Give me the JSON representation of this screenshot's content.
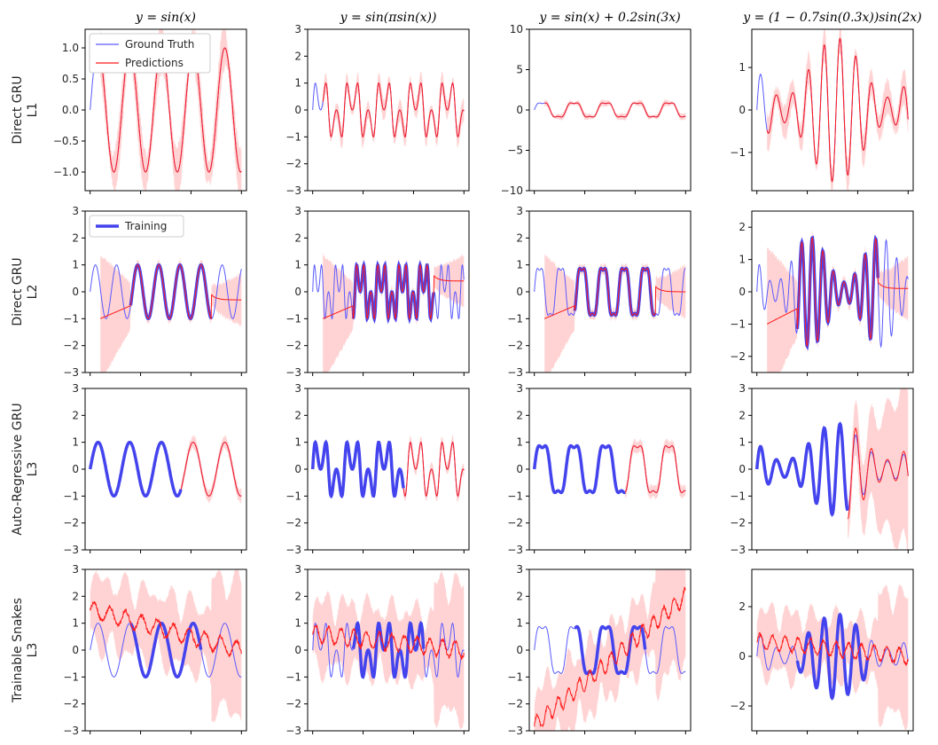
{
  "figure": {
    "col_titles": [
      "y = sin(x)",
      "y = sin(πsin(x))",
      "y = sin(x) + 0.2sin(3x)",
      "y = (1 − 0.7sin(0.3x))sin(2x)"
    ],
    "row_labels": [
      [
        "Direct GRU",
        "L1"
      ],
      [
        "Direct GRU",
        "L2"
      ],
      [
        "Auto-Regressive GRU",
        "L3"
      ],
      [
        "Trainable Snakes",
        "L3"
      ]
    ],
    "legend_row0": [
      "Ground Truth",
      "Predictions"
    ],
    "legend_row1": [
      "Training"
    ],
    "colors": {
      "ground_truth": "#5a5aff",
      "training": "#4444ee",
      "predictions": "#ff1a1a",
      "band": "#ffc8c8"
    }
  },
  "chart_data": [
    {
      "type": "line",
      "row": 0,
      "col": 0,
      "ylim": [
        -1.3,
        1.3
      ],
      "yticks": [
        "1.0",
        "0.5",
        "0.0",
        "−0.5",
        "−1.0"
      ],
      "ytick_values": [
        1.0,
        0.5,
        0.0,
        -0.5,
        -1.0
      ],
      "series": [
        {
          "name": "Ground Truth",
          "values": "sin(x), x∈[0,30]"
        },
        {
          "name": "Predictions",
          "values": "sin(x), x∈[2,30]"
        }
      ]
    },
    {
      "type": "line",
      "row": 0,
      "col": 1,
      "ylim": [
        -3,
        3
      ],
      "yticks": [
        "3",
        "2",
        "1",
        "0",
        "−1",
        "−2",
        "−3"
      ],
      "ytick_values": [
        3,
        2,
        1,
        0,
        -1,
        -2,
        -3
      ]
    },
    {
      "type": "line",
      "row": 0,
      "col": 2,
      "ylim": [
        -10,
        10
      ],
      "yticks": [
        "10",
        "5",
        "0",
        "−5",
        "−10"
      ],
      "ytick_values": [
        10,
        5,
        0,
        -5,
        -10
      ]
    },
    {
      "type": "line",
      "row": 0,
      "col": 3,
      "ylim": [
        -1.9,
        1.9
      ],
      "yticks": [
        "1",
        "0",
        "−1"
      ],
      "ytick_values": [
        1,
        0,
        -1
      ]
    },
    {
      "type": "line",
      "row": 1,
      "col": 0,
      "ylim": [
        -3,
        3
      ],
      "yticks": [
        "3",
        "2",
        "1",
        "0",
        "−1",
        "−2",
        "−3"
      ],
      "ytick_values": [
        3,
        2,
        1,
        0,
        -1,
        -2,
        -3
      ]
    },
    {
      "type": "line",
      "row": 1,
      "col": 1,
      "ylim": [
        -3,
        3
      ],
      "yticks": [
        "3",
        "2",
        "1",
        "0",
        "−1",
        "−2",
        "−3"
      ],
      "ytick_values": [
        3,
        2,
        1,
        0,
        -1,
        -2,
        -3
      ]
    },
    {
      "type": "line",
      "row": 1,
      "col": 2,
      "ylim": [
        -3,
        3
      ],
      "yticks": [
        "3",
        "2",
        "1",
        "0",
        "−1",
        "−2",
        "−3"
      ],
      "ytick_values": [
        3,
        2,
        1,
        0,
        -1,
        -2,
        -3
      ]
    },
    {
      "type": "line",
      "row": 1,
      "col": 3,
      "ylim": [
        -2.5,
        2.5
      ],
      "yticks": [
        "2",
        "1",
        "0",
        "−1",
        "−2"
      ],
      "ytick_values": [
        2,
        1,
        0,
        -1,
        -2
      ]
    },
    {
      "type": "line",
      "row": 2,
      "col": 0,
      "ylim": [
        -3,
        3
      ],
      "yticks": [
        "3",
        "2",
        "1",
        "0",
        "−1",
        "−2",
        "−3"
      ],
      "ytick_values": [
        3,
        2,
        1,
        0,
        -1,
        -2,
        -3
      ]
    },
    {
      "type": "line",
      "row": 2,
      "col": 1,
      "ylim": [
        -3,
        3
      ],
      "yticks": [
        "3",
        "2",
        "1",
        "0",
        "−1",
        "−2",
        "−3"
      ],
      "ytick_values": [
        3,
        2,
        1,
        0,
        -1,
        -2,
        -3
      ]
    },
    {
      "type": "line",
      "row": 2,
      "col": 2,
      "ylim": [
        -3,
        3
      ],
      "yticks": [
        "3",
        "2",
        "1",
        "0",
        "−1",
        "−2",
        "−3"
      ],
      "ytick_values": [
        3,
        2,
        1,
        0,
        -1,
        -2,
        -3
      ]
    },
    {
      "type": "line",
      "row": 2,
      "col": 3,
      "ylim": [
        -3,
        3
      ],
      "yticks": [
        "3",
        "2",
        "1",
        "0",
        "−1",
        "−2",
        "−3"
      ],
      "ytick_values": [
        3,
        2,
        1,
        0,
        -1,
        -2,
        -3
      ]
    },
    {
      "type": "line",
      "row": 3,
      "col": 0,
      "ylim": [
        -3,
        3
      ],
      "yticks": [
        "3",
        "2",
        "1",
        "0",
        "−1",
        "−2",
        "−3"
      ],
      "ytick_values": [
        3,
        2,
        1,
        0,
        -1,
        -2,
        -3
      ]
    },
    {
      "type": "line",
      "row": 3,
      "col": 1,
      "ylim": [
        -3,
        3
      ],
      "yticks": [
        "3",
        "2",
        "1",
        "0",
        "−1",
        "−2",
        "−3"
      ],
      "ytick_values": [
        3,
        2,
        1,
        0,
        -1,
        -2,
        -3
      ]
    },
    {
      "type": "line",
      "row": 3,
      "col": 2,
      "ylim": [
        -3,
        3
      ],
      "yticks": [
        "3",
        "2",
        "1",
        "0",
        "−1",
        "−2",
        "−3"
      ],
      "ytick_values": [
        3,
        2,
        1,
        0,
        -1,
        -2,
        -3
      ]
    },
    {
      "type": "line",
      "row": 3,
      "col": 3,
      "ylim": [
        -3,
        3.5
      ],
      "yticks": [
        "2",
        "0",
        "−2"
      ],
      "ytick_values": [
        2,
        0,
        -2
      ]
    }
  ]
}
